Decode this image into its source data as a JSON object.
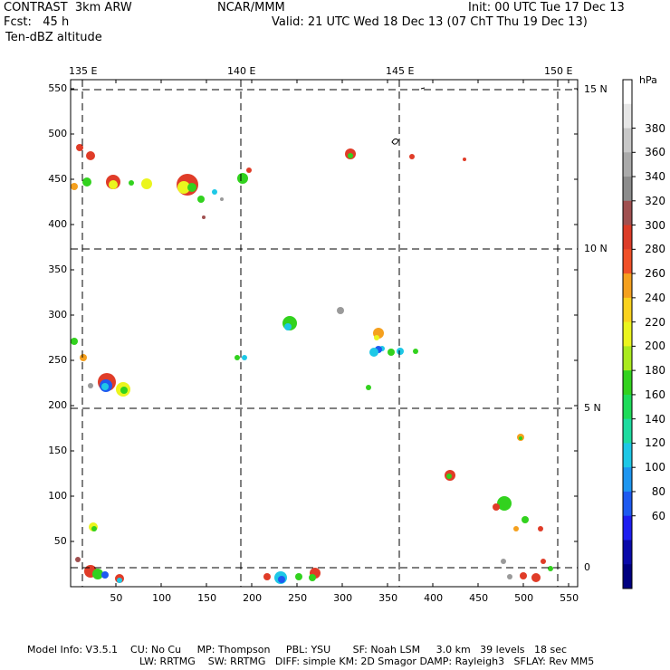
{
  "header": {
    "line1_left": "CONTRAST  3km ARW",
    "line1_center": "NCAR/MMM",
    "line1_right": "Init: 00 UTC Tue 17 Dec 13",
    "line2_left": "Fcst:   45 h",
    "line2_right": "Valid: 21 UTC Wed 18 Dec 13 (07 ChT Thu 19 Dec 13)",
    "line3_left": "Ten-dBZ altitude"
  },
  "map": {
    "lon_labels": [
      "135 E",
      "140 E",
      "145 E",
      "150 E"
    ],
    "lat_labels": [
      "15 N",
      "10 N",
      "5 N",
      "0"
    ],
    "x_ticks": [
      "50",
      "100",
      "150",
      "200",
      "250",
      "300",
      "350",
      "400",
      "450",
      "500",
      "550"
    ],
    "y_ticks": [
      "550",
      "500",
      "450",
      "400",
      "350",
      "300",
      "250",
      "200",
      "150",
      "100",
      "50"
    ],
    "grid": "dashed lat/lon lines"
  },
  "colorbar": {
    "unit": "hPa",
    "levels": [
      "380",
      "360",
      "340",
      "320",
      "300",
      "280",
      "260",
      "240",
      "220",
      "200",
      "180",
      "160",
      "140",
      "120",
      "100",
      "80",
      "60"
    ],
    "colors": [
      "#ffffff",
      "#e6e6e6",
      "#c8c8c8",
      "#aaaaaa",
      "#8c8c8c",
      "#a05050",
      "#dc3c28",
      "#f05028",
      "#f5a01e",
      "#fad21e",
      "#ebf51e",
      "#aaeb1e",
      "#32d21e",
      "#1edc5a",
      "#1edca0",
      "#1ec8e6",
      "#1e96f0",
      "#1e5af0",
      "#1e1ef0",
      "#0a0aaa",
      "#000080"
    ],
    "color_order": "top to bottom"
  },
  "footer": {
    "line1": "Model Info: V3.5.1    CU: No Cu     MP: Thompson     PBL: YSU       SF: Noah LSM     3.0 km   39 levels   18 sec",
    "line2": "LW: RRTMG    SW: RRTMG   DIFF: simple KM: 2D Smagor DAMP: Rayleigh3   SFLAY: Rev MM5"
  }
}
